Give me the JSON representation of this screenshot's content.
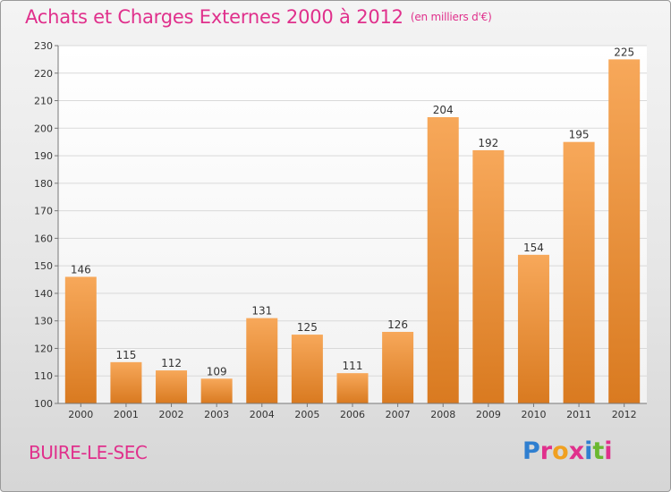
{
  "header": {
    "title": "Achats et Charges Externes 2000 à 2012",
    "unit": "(en milliers d'€)"
  },
  "footer": {
    "location": "BUIRE-LE-SEC",
    "logo_letters": [
      "P",
      "r",
      "o",
      "x",
      "i",
      "t",
      "i"
    ],
    "logo_colors": [
      "#2f7fd0",
      "#e0308c",
      "#f0a020",
      "#e0308c",
      "#2f7fd0",
      "#6ab830",
      "#e0308c"
    ]
  },
  "colors": {
    "title": "#e0308c",
    "bar_light": "#f7a85a",
    "bar_dark": "#d97a20",
    "grid": "#d9d9d9",
    "axis_text": "#333333"
  },
  "chart_data": {
    "type": "bar",
    "categories": [
      "2000",
      "2001",
      "2002",
      "2003",
      "2004",
      "2005",
      "2006",
      "2007",
      "2008",
      "2009",
      "2010",
      "2011",
      "2012"
    ],
    "values": [
      146,
      115,
      112,
      109,
      131,
      125,
      111,
      126,
      204,
      192,
      154,
      195,
      225
    ],
    "ylim": [
      100,
      230
    ],
    "yticks": [
      100,
      110,
      120,
      130,
      140,
      150,
      160,
      170,
      180,
      190,
      200,
      210,
      220,
      230
    ],
    "grid": true,
    "data_labels": true
  }
}
